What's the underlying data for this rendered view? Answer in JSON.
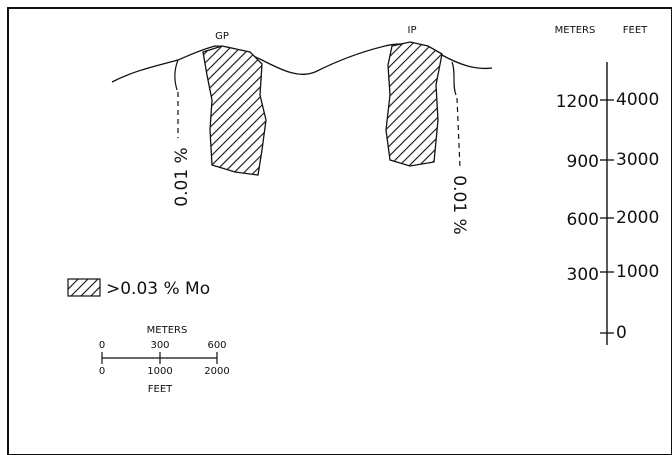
{
  "labels": {
    "gp": "GP",
    "ip": "IP",
    "contour_left": "0.01 %",
    "contour_right": "0.01 %"
  },
  "legend": {
    "label": ">0.03 % Mo"
  },
  "vertical_scale": {
    "meters_title": "METERS",
    "feet_title": "FEET",
    "meters": [
      "1200",
      "900",
      "600",
      "300"
    ],
    "feet": [
      "4000",
      "3000",
      "2000",
      "1000",
      "0"
    ]
  },
  "horizontal_scale": {
    "meters_title": "METERS",
    "meters": [
      "0",
      "300",
      "600"
    ],
    "feet": [
      "0",
      "1000",
      "2000"
    ],
    "feet_title": "FEET"
  }
}
